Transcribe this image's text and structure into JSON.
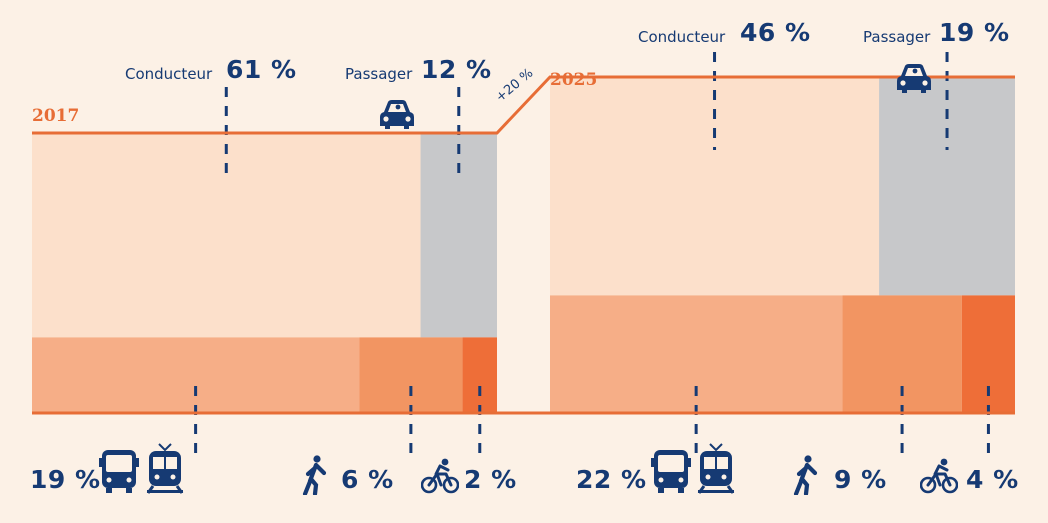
{
  "chart_data": {
    "type": "marimekko",
    "increase_label": "+20%",
    "panels": [
      {
        "year": "2017",
        "total_index": 100,
        "segments": [
          {
            "mode": "Conducteur",
            "icon": "car-icon",
            "value": 61,
            "label": "61 %",
            "color": "#fce0cb",
            "layer": "top"
          },
          {
            "mode": "Passager",
            "icon": "car-icon",
            "value": 12,
            "label": "12 %",
            "color": "#c7c8ca",
            "layer": "top"
          },
          {
            "mode": "Transports en commun",
            "icon": "bus-train-icon",
            "value": 19,
            "label": "19 %",
            "color": "#f6ae87",
            "layer": "bottom"
          },
          {
            "mode": "Marche",
            "icon": "walk-icon",
            "value": 6,
            "label": "6 %",
            "color": "#f29562",
            "layer": "bottom"
          },
          {
            "mode": "Vélo",
            "icon": "bike-icon",
            "value": 2,
            "label": "2 %",
            "color": "#ee6e38",
            "layer": "bottom"
          }
        ]
      },
      {
        "year": "2025",
        "total_index": 120,
        "segments": [
          {
            "mode": "Conducteur",
            "icon": "car-icon",
            "value": 46,
            "label": "46 %",
            "color": "#fce0cb",
            "layer": "top"
          },
          {
            "mode": "Passager",
            "icon": "car-icon",
            "value": 19,
            "label": "19 %",
            "color": "#c7c8ca",
            "layer": "top"
          },
          {
            "mode": "Transports en commun",
            "icon": "bus-train-icon",
            "value": 22,
            "label": "22 %",
            "color": "#f6ae87",
            "layer": "bottom"
          },
          {
            "mode": "Marche",
            "icon": "walk-icon",
            "value": 9,
            "label": "9 %",
            "color": "#f29562",
            "layer": "bottom"
          },
          {
            "mode": "Vélo",
            "icon": "bike-icon",
            "value": 4,
            "label": "4 %",
            "color": "#ee6e38",
            "layer": "bottom"
          }
        ]
      }
    ]
  },
  "colors": {
    "accent": "#e76d36",
    "text": "#163a73",
    "background": "#fcf1e6"
  },
  "labels": {
    "c2017_word": "Conducteur",
    "c2017_pct": "61 %",
    "p2017_word": "Passager",
    "p2017_pct": "12 %",
    "c2025_word": "Conducteur",
    "c2025_pct": "46 %",
    "p2025_word": "Passager",
    "p2025_pct": "19 %",
    "tc2017": "19 %",
    "walk2017": "6 %",
    "bike2017": "2 %",
    "tc2025": "22 %",
    "walk2025": "9 %",
    "bike2025": "4 %",
    "year2017": "2017",
    "year2025": "2025",
    "increase": "+20 %"
  }
}
